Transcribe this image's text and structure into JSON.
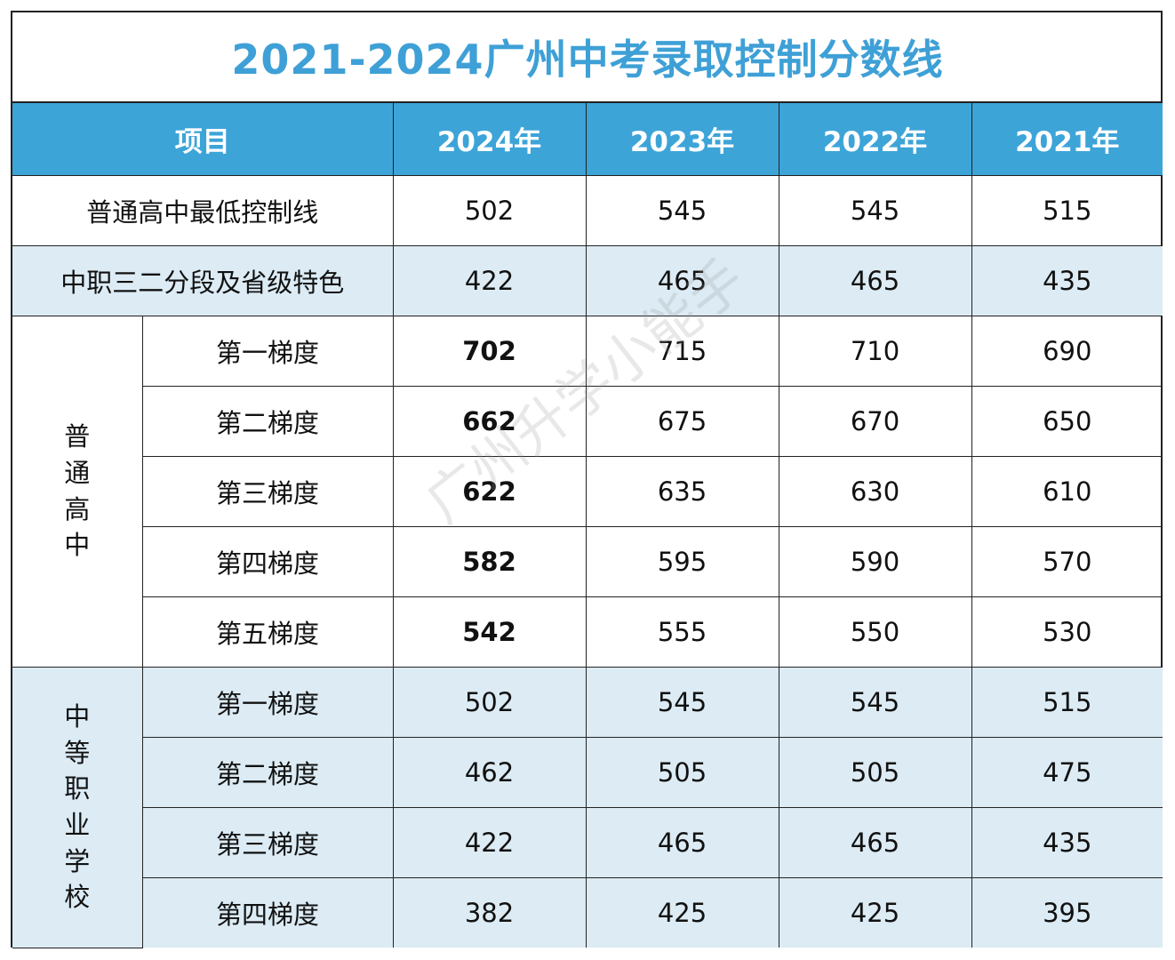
{
  "title": "2021-2024广州中考录取控制分数线",
  "header": {
    "item": "项目",
    "years": [
      "2024年",
      "2023年",
      "2022年",
      "2021年"
    ]
  },
  "rows": [
    {
      "label": "普通高中最低控制线",
      "values": [
        "502",
        "545",
        "545",
        "515"
      ]
    },
    {
      "label": "中职三二分段及省级特色",
      "values": [
        "422",
        "465",
        "465",
        "435"
      ]
    }
  ],
  "groups": [
    {
      "label": "普通高中",
      "rows": [
        {
          "label": "第一梯度",
          "values": [
            "702",
            "715",
            "710",
            "690"
          ]
        },
        {
          "label": "第二梯度",
          "values": [
            "662",
            "675",
            "670",
            "650"
          ]
        },
        {
          "label": "第三梯度",
          "values": [
            "622",
            "635",
            "630",
            "610"
          ]
        },
        {
          "label": "第四梯度",
          "values": [
            "582",
            "595",
            "590",
            "570"
          ]
        },
        {
          "label": "第五梯度",
          "values": [
            "542",
            "555",
            "550",
            "530"
          ]
        }
      ]
    },
    {
      "label": "中等职业学校",
      "rows": [
        {
          "label": "第一梯度",
          "values": [
            "502",
            "545",
            "545",
            "515"
          ]
        },
        {
          "label": "第二梯度",
          "values": [
            "462",
            "505",
            "505",
            "475"
          ]
        },
        {
          "label": "第三梯度",
          "values": [
            "422",
            "465",
            "465",
            "435"
          ]
        },
        {
          "label": "第四梯度",
          "values": [
            "382",
            "425",
            "425",
            "395"
          ]
        }
      ]
    }
  ],
  "watermark": "广州升学小能手",
  "colors": {
    "title": "#3ea0d6",
    "header_bg": "#3da4d8",
    "shade_bg": "#dcebf4",
    "highlight": "#e31b1b"
  }
}
